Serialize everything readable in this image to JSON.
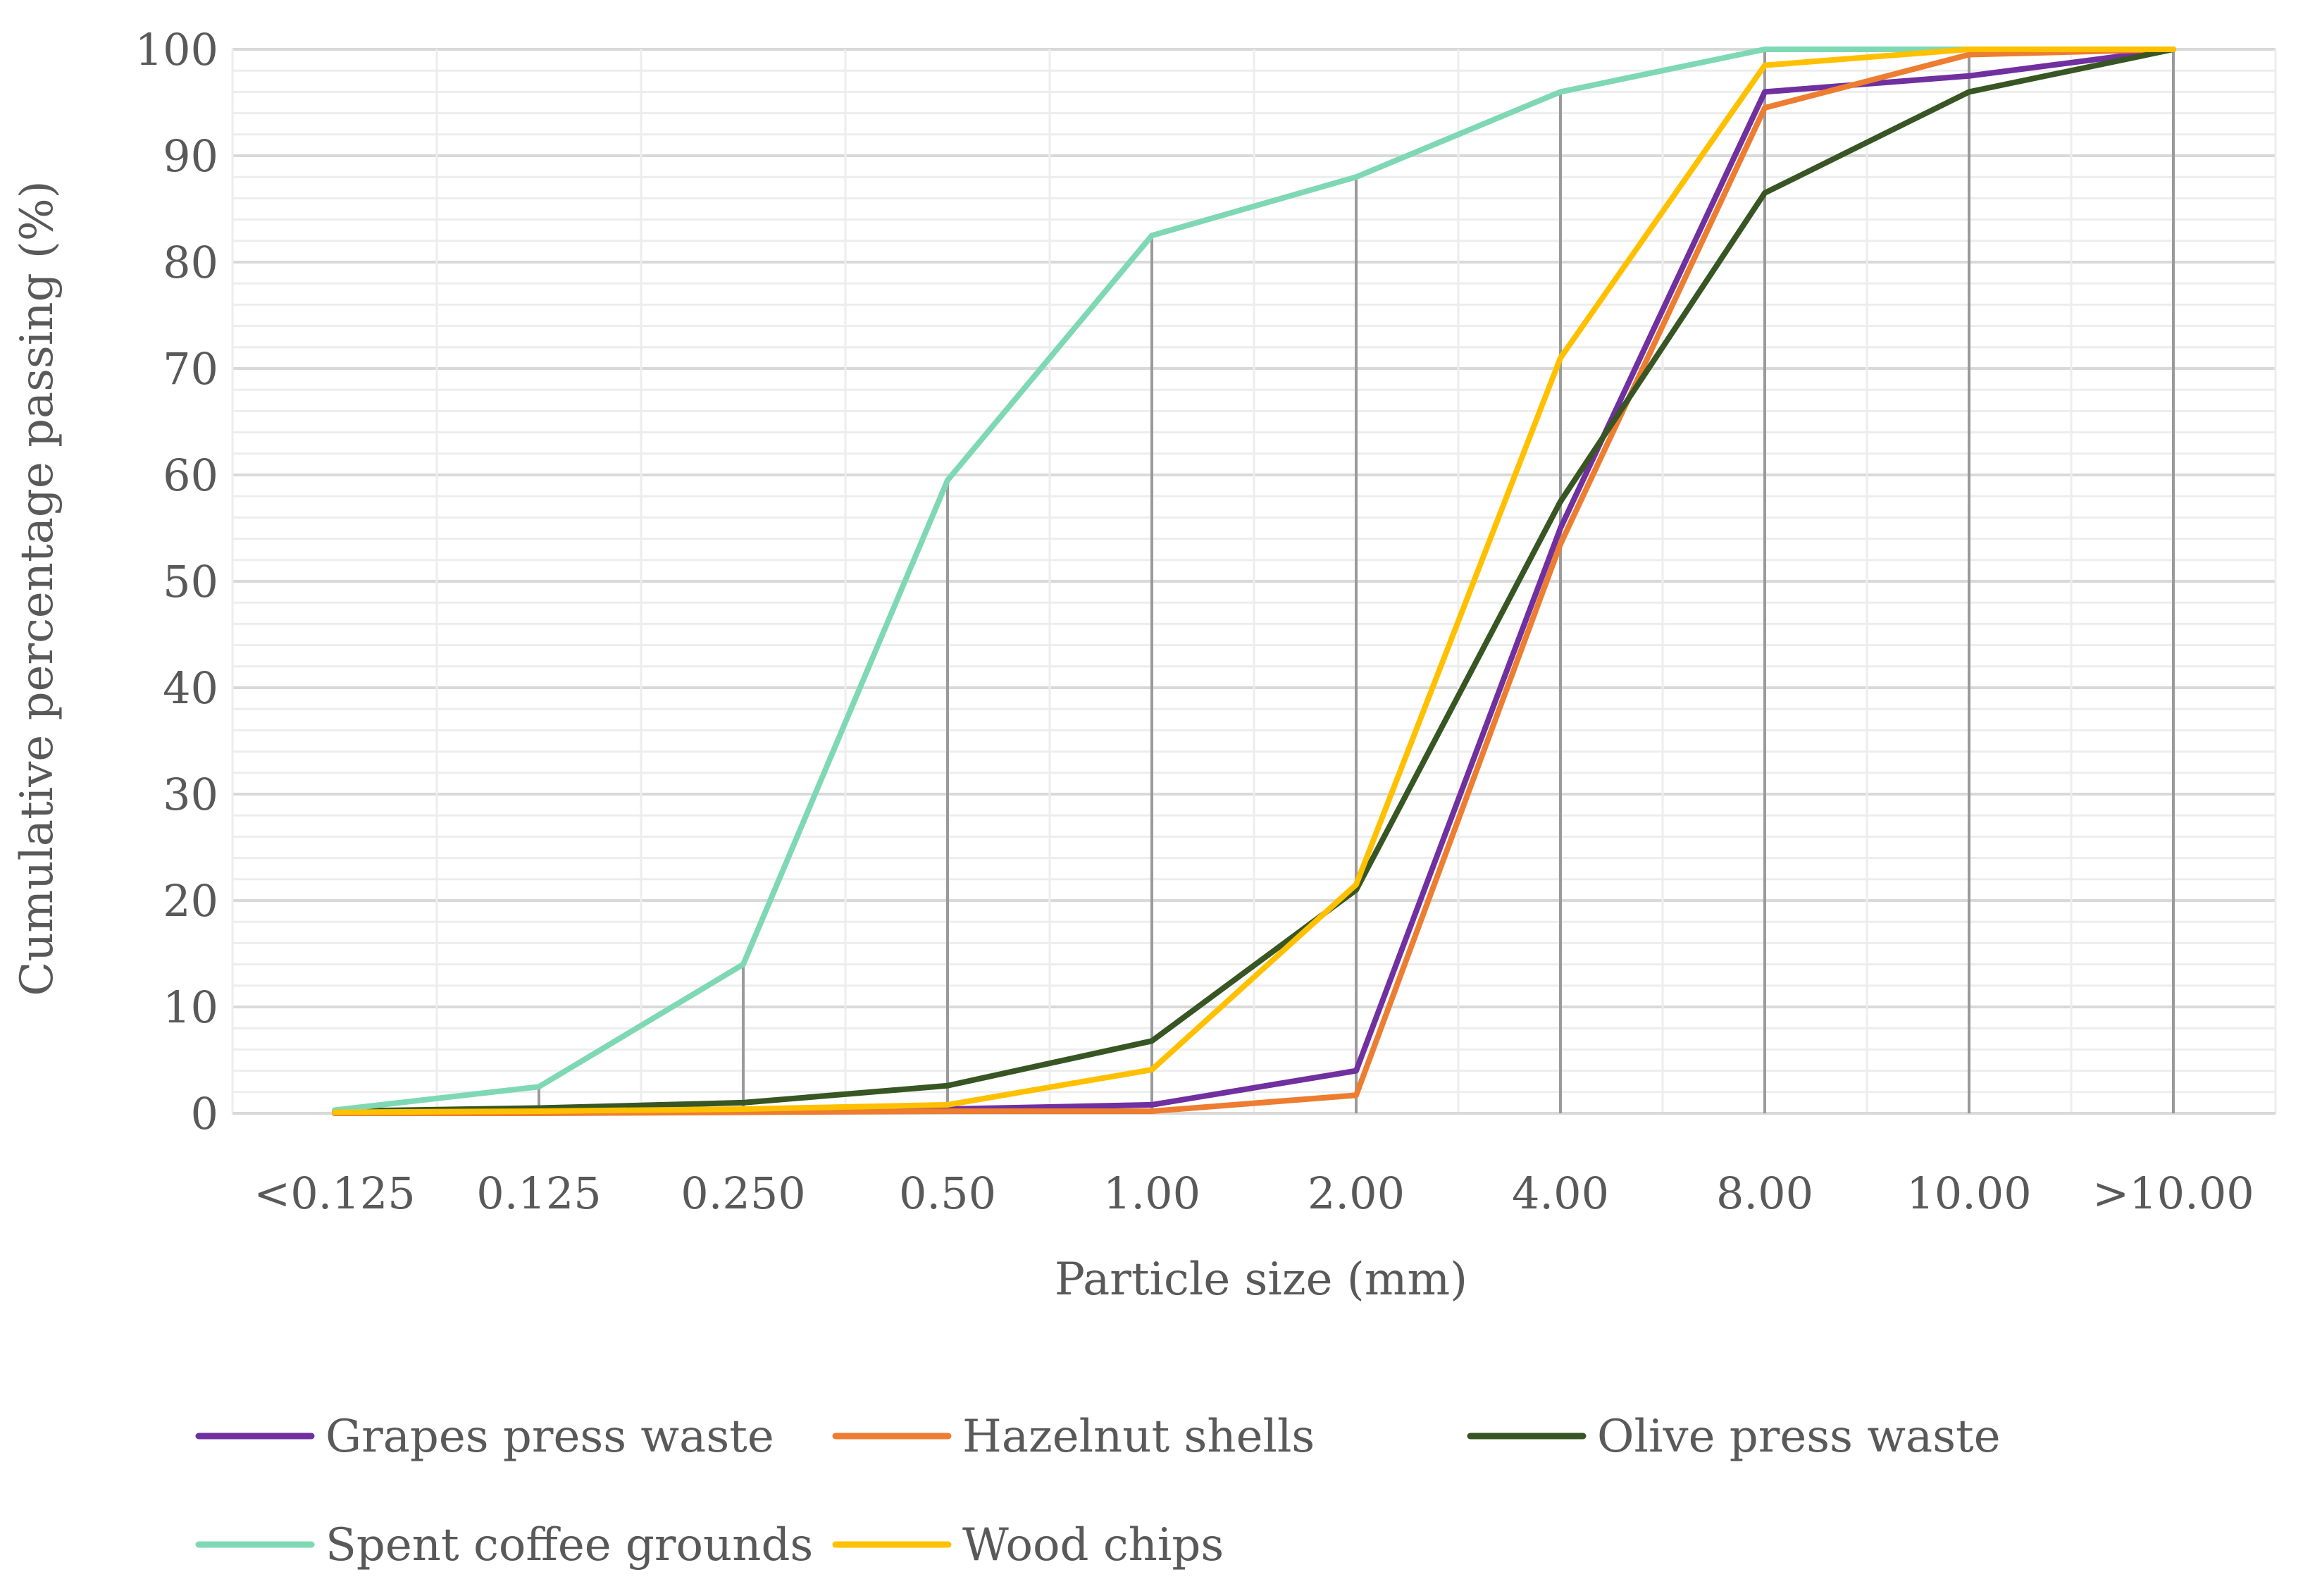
{
  "chart_data": {
    "type": "line",
    "title": "",
    "xlabel": "Particle size (mm)",
    "ylabel": "Cumulative percentage passing (%)",
    "categories": [
      "<0.125",
      "0.125",
      "0.250",
      "0.50",
      "1.00",
      "2.00",
      "4.00",
      "8.00",
      "10.00",
      ">10.00"
    ],
    "ylim": [
      0,
      100
    ],
    "yticks": [
      0,
      10,
      20,
      30,
      40,
      50,
      60,
      70,
      80,
      90,
      100
    ],
    "minor_grid_step": 2,
    "grid": true,
    "drop_lines": true,
    "legend_position": "bottom",
    "series": [
      {
        "name": "Grapes press waste",
        "color": "#7030A0",
        "values": [
          0.1,
          0.2,
          0.3,
          0.4,
          0.8,
          4.0,
          55.0,
          96.0,
          97.5,
          100
        ]
      },
      {
        "name": "Hazelnut shells",
        "color": "#ED7D31",
        "values": [
          0.0,
          0.0,
          0.1,
          0.2,
          0.2,
          1.7,
          53.5,
          94.5,
          99.5,
          100
        ]
      },
      {
        "name": "Olive press waste",
        "color": "#375623",
        "values": [
          0.2,
          0.5,
          1.0,
          2.6,
          6.8,
          21.0,
          57.5,
          86.5,
          96.0,
          100
        ]
      },
      {
        "name": "Spent coffee grounds",
        "color": "#7FD8B4",
        "values": [
          0.3,
          2.5,
          14.0,
          59.5,
          82.5,
          88.0,
          96.0,
          100,
          100,
          100
        ]
      },
      {
        "name": "Wood chips",
        "color": "#FFC000",
        "values": [
          0.1,
          0.2,
          0.4,
          0.8,
          4.1,
          21.5,
          71.0,
          98.5,
          100,
          100
        ]
      }
    ]
  }
}
